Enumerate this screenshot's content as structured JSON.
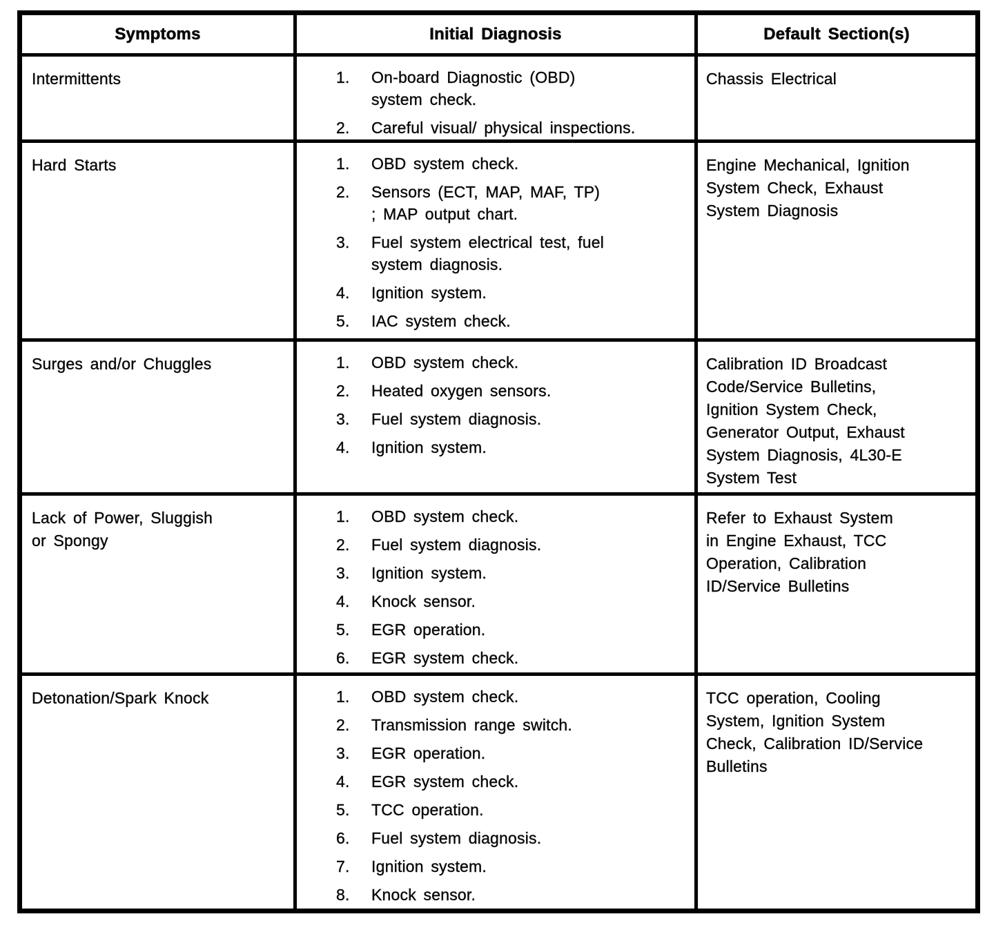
{
  "document": {
    "kind": "scanned service manual diagnostic table",
    "ink_color": "#000000",
    "paper_color": "#ffffff"
  },
  "table": {
    "headers": [
      "Symptoms",
      "Initial Diagnosis",
      "Default Section(s)"
    ],
    "rows": [
      {
        "symptom": "Intermittents",
        "diagnosis": [
          "On-board Diagnostic (OBD)\nsystem check.",
          "Careful visual/ physical inspections."
        ],
        "default_sections": "Chassis Electrical"
      },
      {
        "symptom": "Hard Starts",
        "diagnosis": [
          "OBD system check.",
          "Sensors (ECT, MAP, MAF, TP)\n; MAP output chart.",
          "Fuel system electrical test, fuel\nsystem diagnosis.",
          "Ignition system.",
          "IAC system check."
        ],
        "default_sections": "Engine Mechanical, Ignition\nSystem Check, Exhaust\nSystem Diagnosis"
      },
      {
        "symptom": "Surges and/or Chuggles",
        "diagnosis": [
          "OBD system check.",
          "Heated oxygen sensors.",
          "Fuel system diagnosis.",
          "Ignition system."
        ],
        "default_sections": "Calibration ID Broadcast\nCode/Service Bulletins,\nIgnition System Check,\nGenerator Output, Exhaust\nSystem Diagnosis, 4L30-E\nSystem Test"
      },
      {
        "symptom": "Lack of Power, Sluggish\nor Spongy",
        "diagnosis": [
          "OBD system check.",
          "Fuel system diagnosis.",
          "Ignition system.",
          "Knock sensor.",
          "EGR operation.",
          "EGR system check."
        ],
        "default_sections": "Refer to Exhaust System\nin Engine Exhaust, TCC\nOperation, Calibration\nID/Service Bulletins"
      },
      {
        "symptom": "Detonation/Spark Knock",
        "diagnosis": [
          "OBD system check.",
          "Transmission range switch.",
          "EGR operation.",
          "EGR system check.",
          "TCC operation.",
          "Fuel system diagnosis.",
          "Ignition system.",
          "Knock sensor."
        ],
        "default_sections": "TCC operation, Cooling\nSystem, Ignition System\nCheck, Calibration ID/Service\nBulletins"
      }
    ]
  }
}
